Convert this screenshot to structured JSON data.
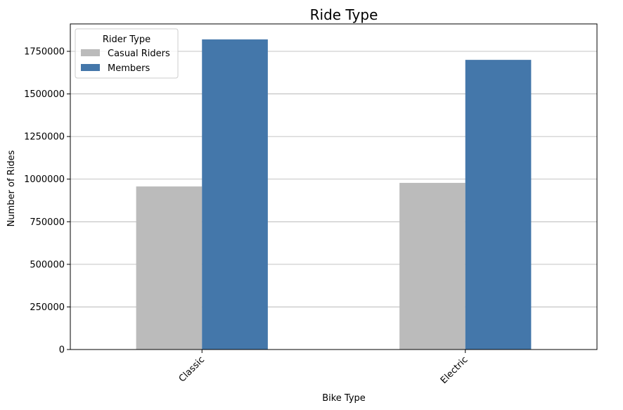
{
  "chart_data": {
    "type": "bar",
    "title": "Ride Type",
    "xlabel": "Bike Type",
    "ylabel": "Number of Rides",
    "categories": [
      "Classic",
      "Electric"
    ],
    "series": [
      {
        "name": "Casual Riders",
        "color": "#bbbbbb",
        "values": [
          957000,
          978000
        ]
      },
      {
        "name": "Members",
        "color": "#4477aa",
        "values": [
          1820000,
          1700000
        ]
      }
    ],
    "ylim": [
      0,
      1911000
    ],
    "yticks": [
      0,
      250000,
      500000,
      750000,
      1000000,
      1250000,
      1500000,
      1750000
    ],
    "ytick_labels": [
      "0",
      "250000",
      "500000",
      "750000",
      "1000000",
      "1250000",
      "1500000",
      "1750000"
    ],
    "grid": "y",
    "legend": {
      "title": "Rider Type",
      "placement": "top-left"
    },
    "xtick_rotation": 45
  }
}
